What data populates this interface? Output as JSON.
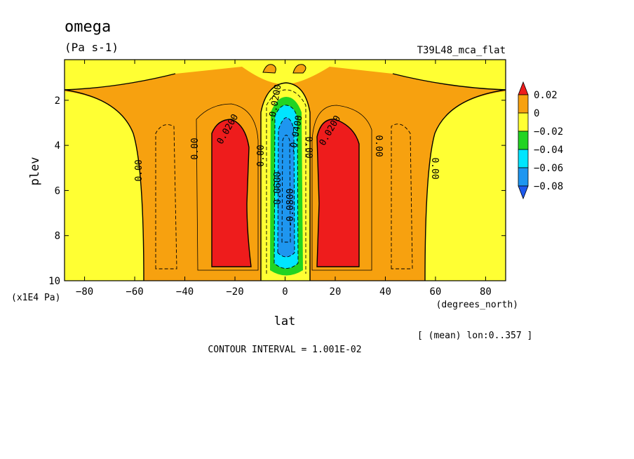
{
  "chart_data": {
    "type": "heatmap",
    "title": "omega",
    "units": "(Pa s-1)",
    "experiment": "T39L48_mca_flat",
    "xlabel": "lat",
    "x_units": "(degrees_north)",
    "ylabel": "plev",
    "y_units": "(x1E4 Pa)",
    "x_ticks": [
      -80,
      -60,
      -40,
      -20,
      0,
      20,
      40,
      60,
      80
    ],
    "y_ticks": [
      2,
      4,
      6,
      8,
      10
    ],
    "xlim": [
      -88,
      88
    ],
    "ylim": [
      0.2,
      10
    ],
    "y_inverted": true,
    "grid": false,
    "averaging_note": "[ (mean) lon:0..357 ]",
    "contour_interval_text": "CONTOUR INTERVAL = 1.001E-02",
    "colorbar": {
      "labels": [
        "0.02",
        "0",
        "−0.02",
        "−0.04",
        "−0.06",
        "−0.08"
      ],
      "bins": [
        {
          "range": "> 0.02",
          "color": "#ee1c1c"
        },
        {
          "range": "0 to 0.02",
          "color": "#f7a10f"
        },
        {
          "range": "-0.02 to 0",
          "color": "#ffff33"
        },
        {
          "range": "-0.04 to -0.02",
          "color": "#22d422"
        },
        {
          "range": "-0.06 to -0.04",
          "color": "#00e5ff"
        },
        {
          "range": "-0.08 to -0.06",
          "color": "#1e96f0"
        },
        {
          "range": "< -0.08",
          "color": "#1e5aee"
        }
      ]
    },
    "contour_labels": [
      "0.00",
      "0.00",
      "0.0200",
      "0.00",
      "-0.0200",
      "-0.0400",
      "-0.0600",
      "-0.0800",
      "0.00",
      "0.0200",
      "0.00",
      "0.00"
    ]
  }
}
